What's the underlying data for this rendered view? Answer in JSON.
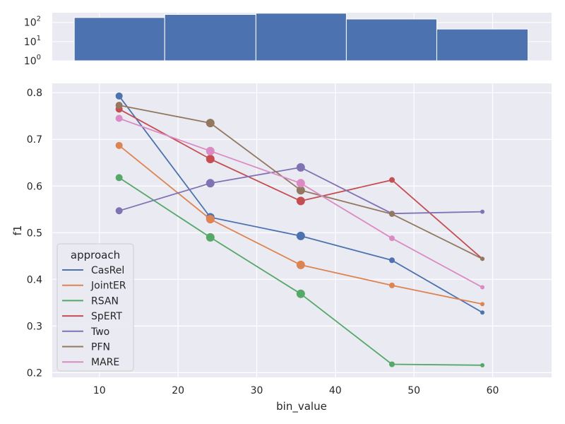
{
  "chart_data": [
    {
      "type": "bar",
      "panel": "histogram",
      "yscale": "log",
      "bins": [
        {
          "x0": 6.8,
          "x1": 18.3,
          "count": 180
        },
        {
          "x0": 18.3,
          "x1": 29.9,
          "count": 260
        },
        {
          "x0": 29.9,
          "x1": 41.4,
          "count": 300
        },
        {
          "x0": 41.4,
          "x1": 52.9,
          "count": 150
        },
        {
          "x0": 52.9,
          "x1": 64.5,
          "count": 45
        }
      ],
      "xlim": [
        4,
        67.5
      ],
      "ylim": [
        1,
        320
      ],
      "ytick_base": "10",
      "yticks": [
        {
          "value": 1,
          "exp": "0"
        },
        {
          "value": 10,
          "exp": "1"
        },
        {
          "value": 100,
          "exp": "2"
        }
      ]
    },
    {
      "type": "line",
      "panel": "main",
      "xlabel": "bin_value",
      "ylabel": "f1",
      "xlim": [
        4,
        67.5
      ],
      "ylim": [
        0.19,
        0.82
      ],
      "xticks": [
        10,
        20,
        30,
        40,
        50,
        60
      ],
      "yticks": [
        0.2,
        0.3,
        0.4,
        0.5,
        0.6,
        0.7,
        0.8
      ],
      "x": [
        12.5,
        24.1,
        35.6,
        47.2,
        58.7
      ],
      "marker_sizes": [
        5,
        6,
        6,
        4,
        3
      ],
      "legend": {
        "title": "approach",
        "placement": "lower-left"
      },
      "series": [
        {
          "name": "CasRel",
          "color": "#4c72b0",
          "values": [
            0.793,
            0.533,
            0.493,
            0.441,
            0.329
          ]
        },
        {
          "name": "JointER",
          "color": "#dd8452",
          "values": [
            0.687,
            0.529,
            0.431,
            0.387,
            0.347
          ]
        },
        {
          "name": "RSAN",
          "color": "#55a868",
          "values": [
            0.618,
            0.49,
            0.369,
            0.218,
            0.216
          ]
        },
        {
          "name": "SpERT",
          "color": "#c44e52",
          "values": [
            0.765,
            0.658,
            0.568,
            0.613,
            0.444
          ]
        },
        {
          "name": "Two",
          "color": "#8172b3",
          "values": [
            0.547,
            0.606,
            0.64,
            0.541,
            0.545
          ]
        },
        {
          "name": "PFN",
          "color": "#937860",
          "values": [
            0.773,
            0.735,
            0.591,
            0.54,
            0.444
          ]
        },
        {
          "name": "MARE",
          "color": "#da8bc3",
          "values": [
            0.745,
            0.675,
            0.606,
            0.488,
            0.383
          ]
        }
      ]
    }
  ]
}
